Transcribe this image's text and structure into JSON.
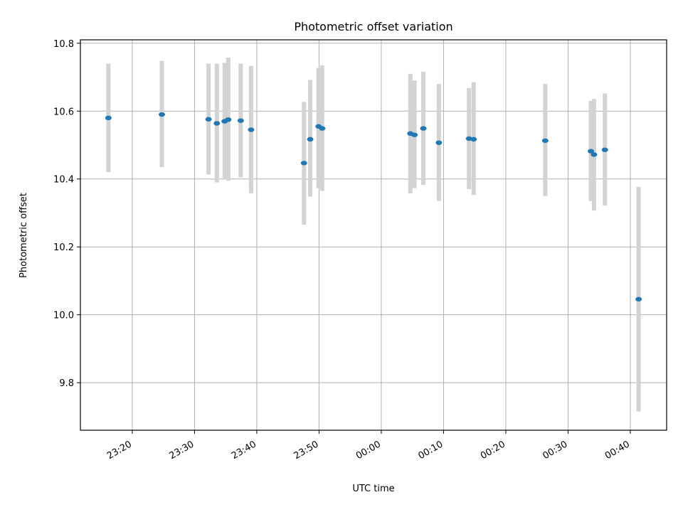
{
  "chart_data": {
    "type": "scatter",
    "title": "Photometric offset variation",
    "xlabel": "UTC time",
    "ylabel": "Photometric offset",
    "x_tick_labels": [
      "23:20",
      "23:30",
      "23:40",
      "23:50",
      "00:00",
      "00:10",
      "00:20",
      "00:30",
      "00:40"
    ],
    "y_tick_labels": [
      "9.8",
      "10.0",
      "10.2",
      "10.4",
      "10.6",
      "10.8"
    ],
    "grid": true,
    "ylim": [
      9.66,
      10.81
    ],
    "xlim": [
      "23:11:40",
      "00:45:50"
    ],
    "series": [
      {
        "marker_color": "#1f77b4",
        "errorbar_color": "#d3d3d3",
        "points": [
          {
            "x": "23:16:10",
            "y": 10.58,
            "ylow": 10.42,
            "yhigh": 10.74
          },
          {
            "x": "23:24:45",
            "y": 10.59,
            "ylow": 10.435,
            "yhigh": 10.748
          },
          {
            "x": "23:32:15",
            "y": 10.576,
            "ylow": 10.413,
            "yhigh": 10.74
          },
          {
            "x": "23:33:35",
            "y": 10.564,
            "ylow": 10.39,
            "yhigh": 10.74
          },
          {
            "x": "23:34:50",
            "y": 10.57,
            "ylow": 10.398,
            "yhigh": 10.742
          },
          {
            "x": "23:35:25",
            "y": 10.575,
            "ylow": 10.395,
            "yhigh": 10.758
          },
          {
            "x": "23:37:25",
            "y": 10.572,
            "ylow": 10.405,
            "yhigh": 10.74
          },
          {
            "x": "23:39:05",
            "y": 10.545,
            "ylow": 10.358,
            "yhigh": 10.733
          },
          {
            "x": "23:47:35",
            "y": 10.447,
            "ylow": 10.265,
            "yhigh": 10.627
          },
          {
            "x": "23:48:35",
            "y": 10.517,
            "ylow": 10.348,
            "yhigh": 10.692
          },
          {
            "x": "23:49:55",
            "y": 10.555,
            "ylow": 10.373,
            "yhigh": 10.727
          },
          {
            "x": "23:50:30",
            "y": 10.549,
            "ylow": 10.365,
            "yhigh": 10.735
          },
          {
            "x": "00:04:40",
            "y": 10.534,
            "ylow": 10.358,
            "yhigh": 10.71
          },
          {
            "x": "00:05:20",
            "y": 10.53,
            "ylow": 10.373,
            "yhigh": 10.69
          },
          {
            "x": "00:06:45",
            "y": 10.549,
            "ylow": 10.383,
            "yhigh": 10.716
          },
          {
            "x": "00:09:15",
            "y": 10.507,
            "ylow": 10.335,
            "yhigh": 10.68
          },
          {
            "x": "00:14:05",
            "y": 10.519,
            "ylow": 10.37,
            "yhigh": 10.668
          },
          {
            "x": "00:14:50",
            "y": 10.517,
            "ylow": 10.353,
            "yhigh": 10.685
          },
          {
            "x": "00:26:20",
            "y": 10.513,
            "ylow": 10.35,
            "yhigh": 10.68
          },
          {
            "x": "00:33:40",
            "y": 10.482,
            "ylow": 10.335,
            "yhigh": 10.63
          },
          {
            "x": "00:34:10",
            "y": 10.472,
            "ylow": 10.307,
            "yhigh": 10.636
          },
          {
            "x": "00:35:55",
            "y": 10.486,
            "ylow": 10.322,
            "yhigh": 10.652
          },
          {
            "x": "00:41:20",
            "y": 10.046,
            "ylow": 9.715,
            "yhigh": 10.377
          }
        ]
      }
    ]
  }
}
